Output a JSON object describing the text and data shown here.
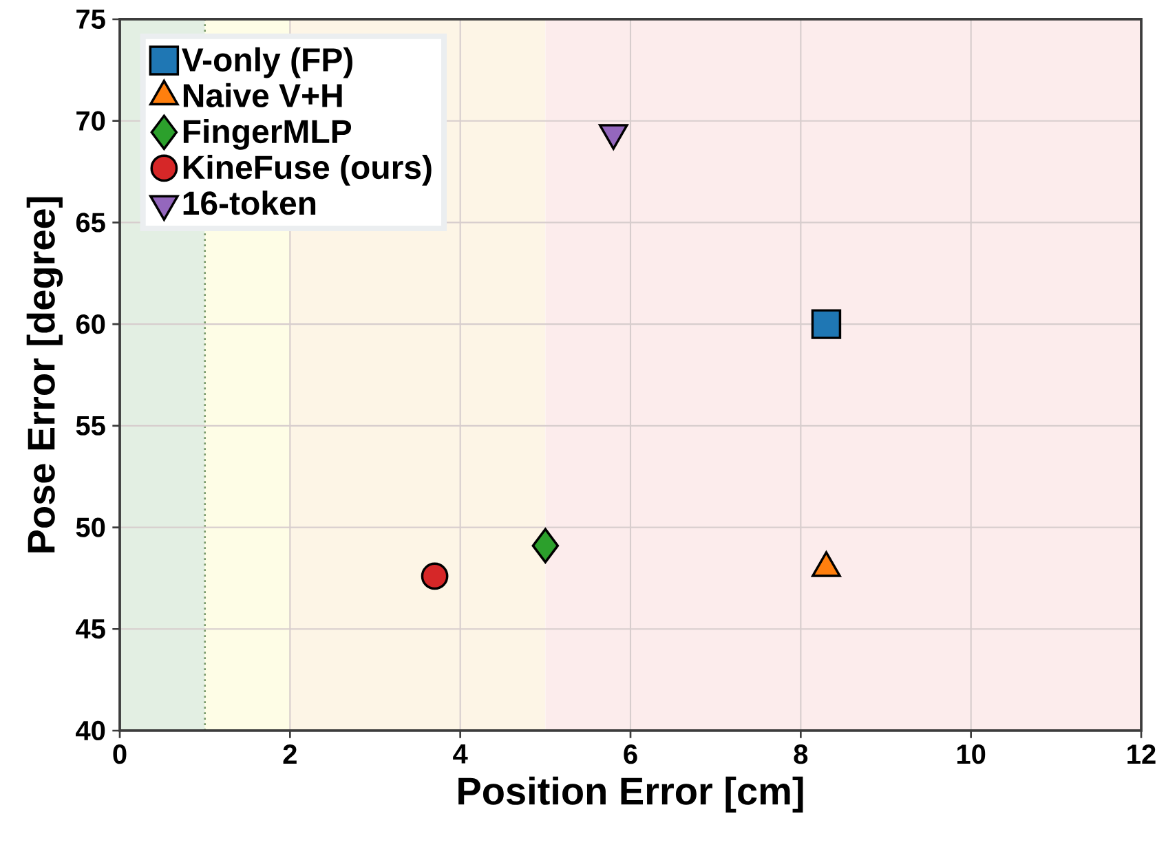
{
  "chart_data": {
    "type": "scatter",
    "xlabel": "Position Error [cm]",
    "ylabel": "Pose Error [degree]",
    "xlim": [
      0,
      12
    ],
    "ylim": [
      40,
      75
    ],
    "xticks": [
      0,
      2,
      4,
      6,
      8,
      10,
      12
    ],
    "yticks": [
      40,
      45,
      50,
      55,
      60,
      65,
      70,
      75
    ],
    "grid": true,
    "legend": "top left",
    "series": [
      {
        "name": "V-only (FP)",
        "color": "#1f77b4",
        "marker": "square",
        "x": [
          8.3
        ],
        "values": [
          60
        ]
      },
      {
        "name": "Naive V+H",
        "color": "#ff7f0e",
        "marker": "triangle",
        "x": [
          8.3
        ],
        "values": [
          48
        ]
      },
      {
        "name": "FingerMLP",
        "color": "#2ca02c",
        "marker": "diamond",
        "x": [
          5.0
        ],
        "values": [
          49.1
        ]
      },
      {
        "name": "KineFuse (ours)",
        "color": "#d62728",
        "marker": "circle",
        "x": [
          3.7
        ],
        "values": [
          47.6
        ]
      },
      {
        "name": "16-token",
        "color": "#9467bd",
        "marker": "triangle_down",
        "x": [
          5.8
        ],
        "values": [
          69.4
        ]
      }
    ],
    "bands": [
      {
        "axis": "x",
        "from": 0,
        "to": 1,
        "color": "#e3efe3"
      },
      {
        "axis": "x",
        "from": 1,
        "to": 2,
        "color": "#fefde6"
      },
      {
        "axis": "x",
        "from": 2,
        "to": 5,
        "color": "#fdf5e6"
      },
      {
        "axis": "x",
        "from": 5,
        "to": 12,
        "color": "#fcecec"
      }
    ],
    "ref_lines": [
      {
        "axis": "x",
        "value": 1,
        "color": "#7a9a6a",
        "line_style": "dotted"
      }
    ]
  }
}
